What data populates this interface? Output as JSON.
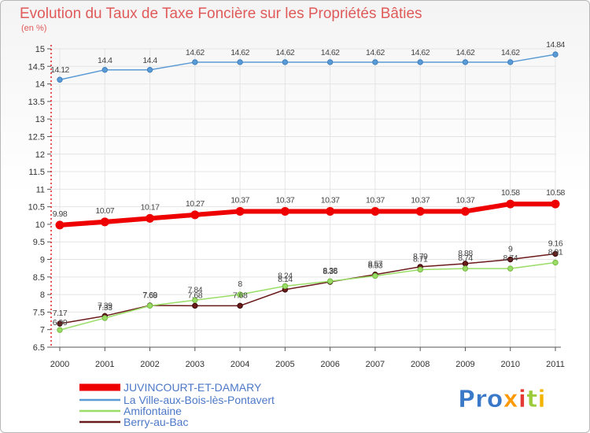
{
  "chart_data": {
    "type": "line",
    "title": "Evolution du Taux de Taxe Foncière sur les Propriétés Bâties",
    "subtitle": "(en %)",
    "categories": [
      "2000",
      "2001",
      "2002",
      "2003",
      "2004",
      "2005",
      "2006",
      "2007",
      "2008",
      "2009",
      "2010",
      "2011"
    ],
    "ylim": [
      6.5,
      15
    ],
    "yticks": [
      "6.5",
      "7",
      "7.5",
      "8",
      "8.5",
      "9",
      "9.5",
      "10",
      "10.5",
      "11",
      "11.5",
      "12",
      "12.5",
      "13",
      "13.5",
      "14",
      "14.5",
      "15"
    ],
    "series": [
      {
        "name": "JUVINCOURT-ET-DAMARY",
        "color": "#ee0000",
        "width": 6,
        "values": [
          9.98,
          10.07,
          10.17,
          10.27,
          10.37,
          10.37,
          10.37,
          10.37,
          10.37,
          10.37,
          10.58,
          10.58
        ],
        "labels": [
          "9.98",
          "10.07",
          "10.17",
          "10.27",
          "10.37",
          "10.37",
          "10.37",
          "10.37",
          "10.37",
          "10.37",
          "10.58",
          "10.58"
        ]
      },
      {
        "name": "La Ville-aux-Bois-lès-Pontavert",
        "color": "#5b9bd5",
        "width": 1.5,
        "values": [
          14.12,
          14.4,
          14.4,
          14.62,
          14.62,
          14.62,
          14.62,
          14.62,
          14.62,
          14.62,
          14.62,
          14.84
        ],
        "labels": [
          "14.12",
          "14.4",
          "14.4",
          "14.62",
          "14.62",
          "14.62",
          "14.62",
          "14.62",
          "14.62",
          "14.62",
          "14.62",
          "14.84"
        ]
      },
      {
        "name": "Amifontaine",
        "color": "#99dd66",
        "width": 1.5,
        "values": [
          6.99,
          7.33,
          7.68,
          7.84,
          8,
          8.24,
          8.38,
          8.53,
          8.71,
          8.74,
          8.74,
          8.91
        ],
        "labels": [
          "6.99",
          "7.33",
          "7.68",
          "7.84",
          "8",
          "8.24",
          "8.38",
          "8.53",
          "8.71",
          "8.74",
          "8.74",
          "8.91"
        ]
      },
      {
        "name": "Berry-au-Bac",
        "color": "#6b1a1a",
        "width": 1.5,
        "values": [
          7.17,
          7.39,
          7.69,
          7.68,
          7.68,
          8.14,
          8.36,
          8.57,
          8.79,
          8.88,
          9,
          9.16
        ],
        "labels": [
          "7.17",
          "7.39",
          "7.69",
          "7.68",
          "7.68",
          "8.14",
          "8.36",
          "8.57",
          "8.79",
          "8.88",
          "9",
          "9.16"
        ]
      }
    ]
  },
  "logo": {
    "text": "Proxiti"
  }
}
